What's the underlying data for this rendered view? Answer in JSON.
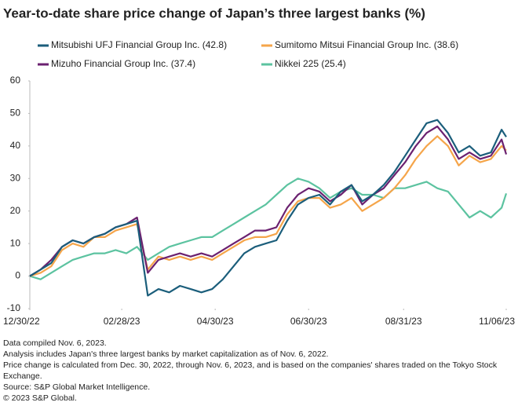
{
  "chart_data": {
    "type": "line",
    "title": "Year-to-date share price change of Japan’s three largest banks (%)",
    "x": [
      "2022-12-30",
      "2023-01-06",
      "2023-01-13",
      "2023-01-20",
      "2023-01-27",
      "2023-02-03",
      "2023-02-10",
      "2023-02-17",
      "2023-02-24",
      "2023-03-03",
      "2023-03-10",
      "2023-03-17",
      "2023-03-24",
      "2023-03-31",
      "2023-04-07",
      "2023-04-14",
      "2023-04-21",
      "2023-04-28",
      "2023-05-05",
      "2023-05-12",
      "2023-05-19",
      "2023-05-26",
      "2023-06-02",
      "2023-06-09",
      "2023-06-16",
      "2023-06-23",
      "2023-06-30",
      "2023-07-07",
      "2023-07-14",
      "2023-07-21",
      "2023-07-28",
      "2023-08-04",
      "2023-08-11",
      "2023-08-18",
      "2023-08-25",
      "2023-09-01",
      "2023-09-08",
      "2023-09-15",
      "2023-09-22",
      "2023-09-29",
      "2023-10-06",
      "2023-10-13",
      "2023-10-20",
      "2023-10-27",
      "2023-11-03",
      "2023-11-06"
    ],
    "series": [
      {
        "name": "Mitsubishi UFJ Financial Group Inc. (42.8)",
        "color": "#1b5e7b",
        "values": [
          0,
          2,
          4,
          9,
          11,
          10,
          12,
          13,
          15,
          16,
          17,
          -6,
          -4,
          -5,
          -3,
          -4,
          -5,
          -4,
          -1,
          3,
          7,
          9,
          10,
          11,
          17,
          22,
          24,
          25,
          22,
          26,
          28,
          23,
          25,
          28,
          32,
          37,
          42,
          47,
          48,
          44,
          38,
          40,
          37,
          38,
          45,
          42.8
        ]
      },
      {
        "name": "Sumitomo Mitsui Financial Group Inc. (38.6)",
        "color": "#f5a54a",
        "values": [
          0,
          1,
          3,
          8,
          10,
          9,
          12,
          12,
          14,
          15,
          16,
          2,
          6,
          5,
          6,
          5,
          6,
          5,
          7,
          9,
          11,
          12,
          12,
          13,
          19,
          23,
          24,
          24,
          21,
          22,
          24,
          20,
          22,
          24,
          27,
          31,
          36,
          40,
          43,
          40,
          34,
          37,
          35,
          36,
          40,
          38.6
        ]
      },
      {
        "name": "Mizuho Financial Group Inc. (37.4)",
        "color": "#6b2170",
        "values": [
          0,
          2,
          5,
          9,
          11,
          10,
          12,
          13,
          15,
          16,
          18,
          1,
          5,
          6,
          7,
          6,
          7,
          6,
          8,
          10,
          12,
          14,
          14,
          15,
          21,
          25,
          27,
          26,
          23,
          25,
          28,
          22,
          25,
          27,
          31,
          35,
          40,
          44,
          46,
          42,
          36,
          38,
          36,
          37,
          42,
          37.4
        ]
      },
      {
        "name": "Nikkei 225 (25.4)",
        "color": "#5cc3a0",
        "values": [
          0,
          -1,
          1,
          3,
          5,
          6,
          7,
          7,
          8,
          7,
          9,
          5,
          7,
          9,
          10,
          11,
          12,
          12,
          14,
          16,
          18,
          20,
          22,
          25,
          28,
          30,
          29,
          27,
          24,
          26,
          27,
          25,
          25,
          24,
          27,
          27,
          28,
          29,
          27,
          26,
          22,
          18,
          20,
          18,
          21,
          25.4
        ]
      }
    ],
    "xlim": [
      "2022-12-30",
      "2023-11-06"
    ],
    "xticks": [
      {
        "value": "2022-12-30",
        "label": "12/30/22"
      },
      {
        "value": "2023-02-28",
        "label": "02/28/23"
      },
      {
        "value": "2023-04-30",
        "label": "04/30/23"
      },
      {
        "value": "2023-06-30",
        "label": "06/30/23"
      },
      {
        "value": "2023-08-31",
        "label": "08/31/23"
      },
      {
        "value": "2023-11-06",
        "label": "11/06/23"
      }
    ],
    "ylim": [
      -10,
      60
    ],
    "yticks": [
      -10,
      0,
      10,
      20,
      30,
      40,
      50,
      60
    ],
    "notes": [
      "Data compiled Nov. 6, 2023.",
      "Analysis includes Japan's three largest banks by market capitalization as of Nov. 6, 2022.",
      "Price change is calculated from Dec. 30, 2022, through Nov. 6, 2023, and is based on the companies' shares traded on the Tokyo Stock Exchange.",
      "Source: S&P Global Market Intelligence.",
      "© 2023 S&P Global."
    ]
  }
}
